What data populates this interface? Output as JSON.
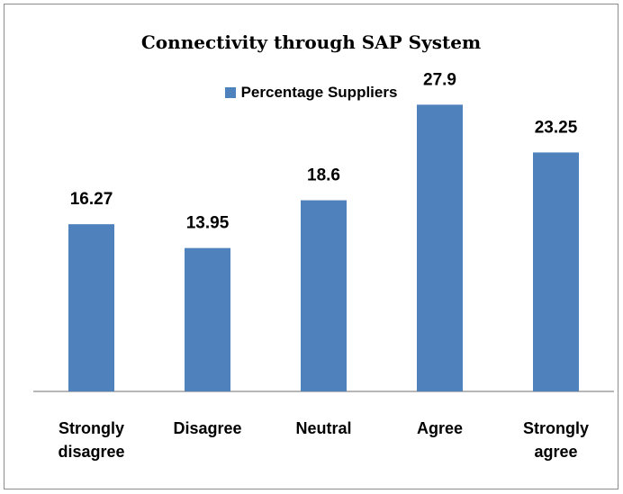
{
  "chart_data": {
    "type": "bar",
    "title": "Connectivity through SAP System",
    "legend_position": "top",
    "categories": [
      [
        "Strongly",
        "disagree"
      ],
      [
        "Disagree"
      ],
      [
        "Neutral"
      ],
      [
        "Agree"
      ],
      [
        "Strongly",
        "agree"
      ]
    ],
    "series": [
      {
        "name": "Percentage Suppliers",
        "values": [
          16.27,
          13.95,
          18.6,
          27.9,
          23.25
        ]
      }
    ],
    "value_labels": [
      "16.27",
      "13.95",
      "18.6",
      "27.9",
      "23.25"
    ],
    "ylim": [
      0,
      30
    ],
    "grid": false,
    "bar_color": "#4f81bd",
    "axis_color": "#8c8c8c"
  }
}
